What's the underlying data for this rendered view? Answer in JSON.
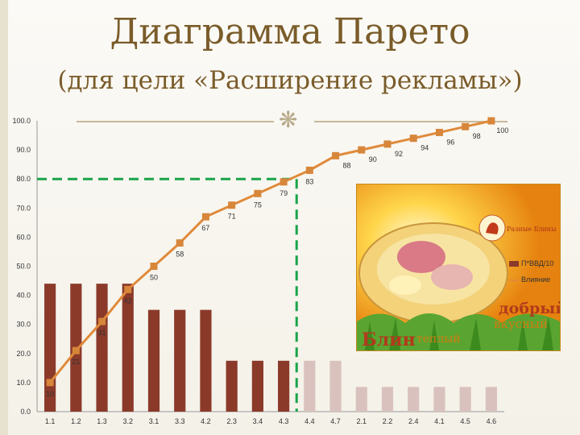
{
  "slide": {
    "title": "Диаграмма Парето",
    "subtitle": "(для цели «Расширение рекламы»)"
  },
  "colors": {
    "bar": "#8b3a2a",
    "bar_faded": "#d9c2bd",
    "line": "#e08a3a",
    "marker": "#d7863a",
    "cutoff": "#1aa34a"
  },
  "legend": [
    "П*ВВД/10",
    "Влияние"
  ],
  "ad_image": {
    "words": [
      "добрый",
      "вкусный",
      "Блин",
      "теплый"
    ],
    "logo": "Разные Блины"
  },
  "chart_data": {
    "type": "bar",
    "categories": [
      "1.1",
      "1.2",
      "1.3",
      "3.2",
      "3.1",
      "3.3",
      "4.2",
      "2.3",
      "3.4",
      "4.3",
      "4.4",
      "4.7",
      "2.1",
      "2.2",
      "2.4",
      "4.1",
      "4.5",
      "4.6"
    ],
    "series": [
      {
        "name": "П*ВВД/10",
        "type": "bar",
        "values": [
          44,
          44,
          44,
          44,
          35,
          35,
          35,
          17.5,
          17.5,
          17.5,
          17.5,
          17.5,
          8.5,
          8.5,
          8.5,
          8.5,
          8.5,
          8.5
        ]
      },
      {
        "name": "Влияние",
        "type": "line",
        "values": [
          10,
          21,
          31,
          42,
          50,
          58,
          67,
          71,
          75,
          79,
          83,
          88,
          90,
          92,
          94,
          96,
          98,
          100
        ]
      }
    ],
    "ylim": [
      0,
      100
    ],
    "yticks": [
      "0.0",
      "10.0",
      "20.0",
      "30.0",
      "40.0",
      "50.0",
      "60.0",
      "70.0",
      "80.0",
      "90.0",
      "100.0"
    ],
    "cutoff": {
      "value": 80,
      "after_category_index": 9
    },
    "faded_from_index": 10,
    "grid": false,
    "legend_position": "right"
  }
}
